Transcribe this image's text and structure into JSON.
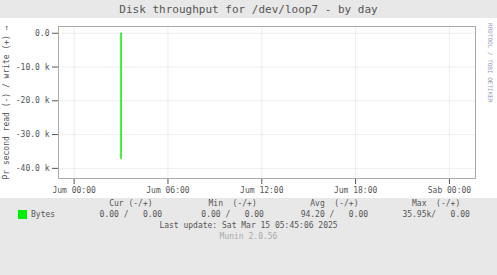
{
  "chart_data": {
    "type": "line",
    "title": "Disk throughput for /dev/loop7  -  by day",
    "ylabel": "Pr second read (-) / write (+)",
    "x": [
      14400,
      14400
    ],
    "series": [
      {
        "name": "Bytes",
        "color": "#00ee00",
        "values": [
          0,
          -37000
        ]
      }
    ],
    "xlim": [
      0,
      96000
    ],
    "xticks": [
      {
        "value": 3600,
        "label": "Jum 00:00"
      },
      {
        "value": 25200,
        "label": "Jum 06:00"
      },
      {
        "value": 46800,
        "label": "Jum 12:00"
      },
      {
        "value": 68400,
        "label": "Jum 18:00"
      },
      {
        "value": 90000,
        "label": "Sab 00:00"
      }
    ],
    "ylim": [
      -43000,
      2000
    ],
    "yticks": [
      {
        "value": 0,
        "label": "0.0"
      },
      {
        "value": -10000,
        "label": "-10.0 k"
      },
      {
        "value": -20000,
        "label": "-20.0 k"
      },
      {
        "value": -30000,
        "label": "-30.0 k"
      },
      {
        "value": -40000,
        "label": "-40.0 k"
      }
    ],
    "grid": true,
    "legend": "bottom",
    "stats_headers": [
      "Cur (-/+)",
      "Min  (-/+)",
      "Avg  (-/+)",
      "Max  (-/+)"
    ],
    "stats_values": [
      "0.00 /   0.00",
      "0.00 /   0.00",
      "94.20 /   0.00",
      "35.95k/   0.00"
    ],
    "annotations": [
      "Last update: Sat Mar 15 05:45:06 2025",
      "Munin 2.0.56",
      "RRDTOOL / TOBI OETIKER"
    ]
  }
}
